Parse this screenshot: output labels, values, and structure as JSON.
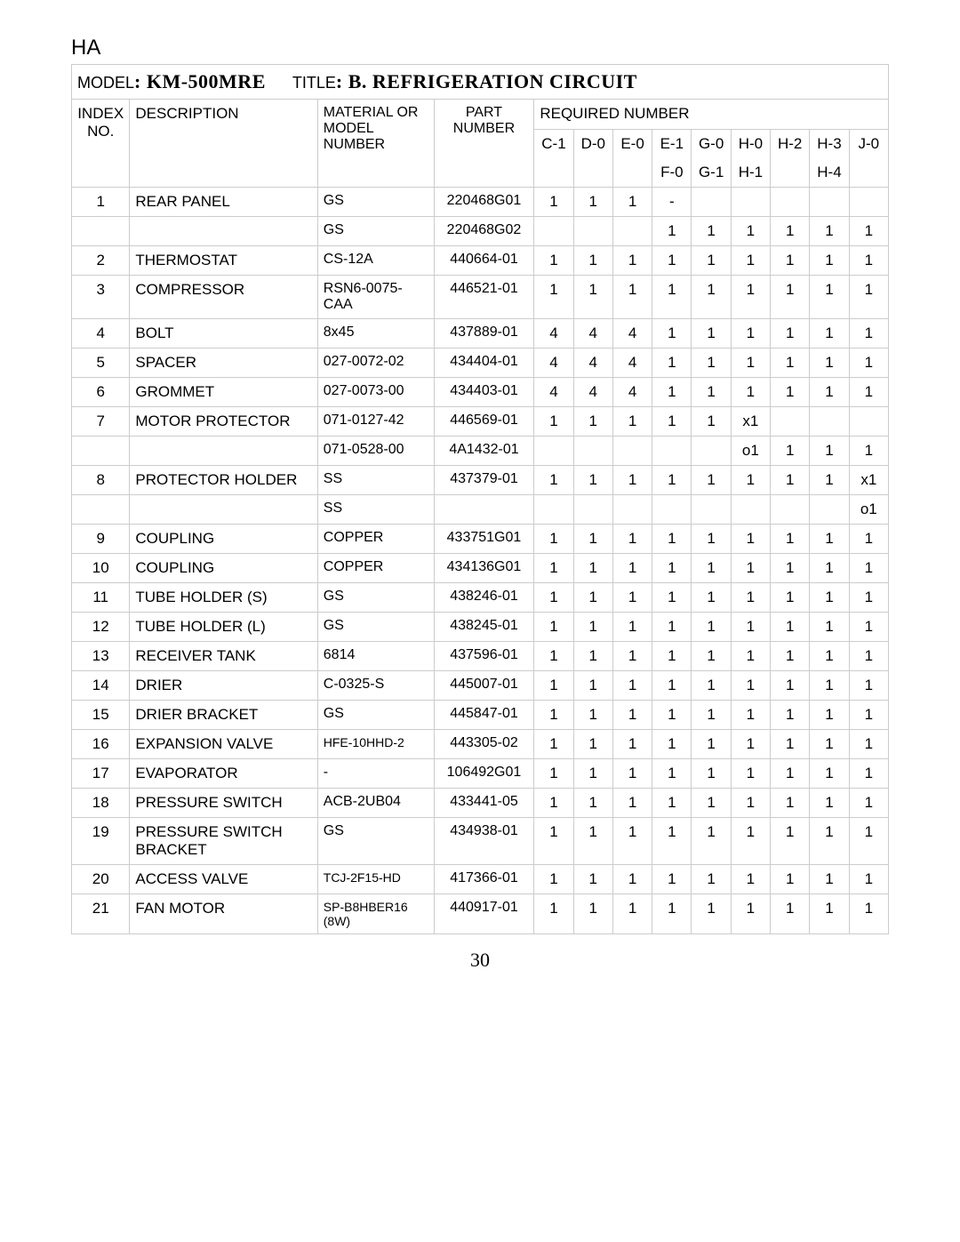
{
  "corner_label": "HA",
  "page_number": "30",
  "title": {
    "model_label": "MODEL",
    "model_value": ": KM-500MRE",
    "title_label": "TITLE",
    "title_value": ": B. REFRIGERATION CIRCUIT"
  },
  "headers": {
    "index": "INDEX NO.",
    "description": "DESCRIPTION",
    "material": "MATERIAL OR MODEL NUMBER",
    "part": "PART NUMBER",
    "required": "REQUIRED NUMBER",
    "cols_top": [
      "C-1",
      "D-0",
      "E-0",
      "E-1",
      "G-0",
      "H-0",
      "H-2",
      "H-3",
      "J-0"
    ],
    "cols_bottom": [
      "",
      "",
      "",
      "F-0",
      "G-1",
      "H-1",
      "",
      "H-4",
      ""
    ]
  },
  "rows": [
    {
      "idx": "1",
      "desc": "REAR PANEL",
      "mat": "GS",
      "part": "220468G01",
      "q": [
        "1",
        "1",
        "1",
        "-",
        "",
        "",
        "",
        "",
        ""
      ]
    },
    {
      "idx": "",
      "desc": "",
      "mat": "GS",
      "part": "220468G02",
      "q": [
        "",
        "",
        "",
        "1",
        "1",
        "1",
        "1",
        "1",
        "1"
      ]
    },
    {
      "idx": "2",
      "desc": "THERMOSTAT",
      "mat": "CS-12A",
      "part": "440664-01",
      "q": [
        "1",
        "1",
        "1",
        "1",
        "1",
        "1",
        "1",
        "1",
        "1"
      ]
    },
    {
      "idx": "3",
      "desc": "COMPRESSOR",
      "mat": "RSN6-0075-CAA",
      "part": "446521-01",
      "q": [
        "1",
        "1",
        "1",
        "1",
        "1",
        "1",
        "1",
        "1",
        "1"
      ]
    },
    {
      "idx": "4",
      "desc": "BOLT",
      "mat": "8x45",
      "part": "437889-01",
      "q": [
        "4",
        "4",
        "4",
        "1",
        "1",
        "1",
        "1",
        "1",
        "1"
      ]
    },
    {
      "idx": "5",
      "desc": "SPACER",
      "mat": "027-0072-02",
      "part": "434404-01",
      "q": [
        "4",
        "4",
        "4",
        "1",
        "1",
        "1",
        "1",
        "1",
        "1"
      ]
    },
    {
      "idx": "6",
      "desc": "GROMMET",
      "mat": "027-0073-00",
      "part": "434403-01",
      "q": [
        "4",
        "4",
        "4",
        "1",
        "1",
        "1",
        "1",
        "1",
        "1"
      ]
    },
    {
      "idx": "7",
      "desc": "MOTOR PROTECTOR",
      "mat": "071-0127-42",
      "part": "446569-01",
      "q": [
        "1",
        "1",
        "1",
        "1",
        "1",
        "x1",
        "",
        "",
        ""
      ]
    },
    {
      "idx": "",
      "desc": "",
      "mat": "071-0528-00",
      "part": "4A1432-01",
      "q": [
        "",
        "",
        "",
        "",
        "",
        "o1",
        "1",
        "1",
        "1"
      ]
    },
    {
      "idx": "8",
      "desc": "PROTECTOR HOLDER",
      "mat": "SS",
      "part": "437379-01",
      "q": [
        "1",
        "1",
        "1",
        "1",
        "1",
        "1",
        "1",
        "1",
        "x1"
      ]
    },
    {
      "idx": "",
      "desc": "",
      "mat": "SS",
      "part": "",
      "q": [
        "",
        "",
        "",
        "",
        "",
        "",
        "",
        "",
        "o1"
      ]
    },
    {
      "idx": "9",
      "desc": "COUPLING",
      "mat": "COPPER",
      "part": "433751G01",
      "q": [
        "1",
        "1",
        "1",
        "1",
        "1",
        "1",
        "1",
        "1",
        "1"
      ]
    },
    {
      "idx": "10",
      "desc": "COUPLING",
      "mat": "COPPER",
      "part": "434136G01",
      "q": [
        "1",
        "1",
        "1",
        "1",
        "1",
        "1",
        "1",
        "1",
        "1"
      ]
    },
    {
      "idx": "11",
      "desc": "TUBE HOLDER (S)",
      "mat": "GS",
      "part": "438246-01",
      "q": [
        "1",
        "1",
        "1",
        "1",
        "1",
        "1",
        "1",
        "1",
        "1"
      ]
    },
    {
      "idx": "12",
      "desc": "TUBE HOLDER (L)",
      "mat": "GS",
      "part": "438245-01",
      "q": [
        "1",
        "1",
        "1",
        "1",
        "1",
        "1",
        "1",
        "1",
        "1"
      ]
    },
    {
      "idx": "13",
      "desc": "RECEIVER TANK",
      "mat": "6814",
      "part": "437596-01",
      "q": [
        "1",
        "1",
        "1",
        "1",
        "1",
        "1",
        "1",
        "1",
        "1"
      ]
    },
    {
      "idx": "14",
      "desc": "DRIER",
      "mat": "C-0325-S",
      "part": "445007-01",
      "q": [
        "1",
        "1",
        "1",
        "1",
        "1",
        "1",
        "1",
        "1",
        "1"
      ]
    },
    {
      "idx": "15",
      "desc": "DRIER BRACKET",
      "mat": "GS",
      "part": "445847-01",
      "q": [
        "1",
        "1",
        "1",
        "1",
        "1",
        "1",
        "1",
        "1",
        "1"
      ]
    },
    {
      "idx": "16",
      "desc": "EXPANSION VALVE",
      "mat": "HFE-10HHD-2",
      "part": "443305-02",
      "q": [
        "1",
        "1",
        "1",
        "1",
        "1",
        "1",
        "1",
        "1",
        "1"
      ],
      "mat_small": true
    },
    {
      "idx": "17",
      "desc": "EVAPORATOR",
      "mat": "-",
      "part": "106492G01",
      "q": [
        "1",
        "1",
        "1",
        "1",
        "1",
        "1",
        "1",
        "1",
        "1"
      ]
    },
    {
      "idx": "18",
      "desc": "PRESSURE SWITCH",
      "mat": "ACB-2UB04",
      "part": "433441-05",
      "q": [
        "1",
        "1",
        "1",
        "1",
        "1",
        "1",
        "1",
        "1",
        "1"
      ]
    },
    {
      "idx": "19",
      "desc": "PRESSURE SWITCH BRACKET",
      "mat": "GS",
      "part": "434938-01",
      "q": [
        "1",
        "1",
        "1",
        "1",
        "1",
        "1",
        "1",
        "1",
        "1"
      ]
    },
    {
      "idx": "20",
      "desc": "ACCESS VALVE",
      "mat": "TCJ-2F15-HD",
      "part": "417366-01",
      "q": [
        "1",
        "1",
        "1",
        "1",
        "1",
        "1",
        "1",
        "1",
        "1"
      ],
      "mat_small": true
    },
    {
      "idx": "21",
      "desc": "FAN MOTOR",
      "mat": "SP-B8HBER16 (8W)",
      "part": "440917-01",
      "q": [
        "1",
        "1",
        "1",
        "1",
        "1",
        "1",
        "1",
        "1",
        "1"
      ],
      "mat_small": true
    }
  ]
}
